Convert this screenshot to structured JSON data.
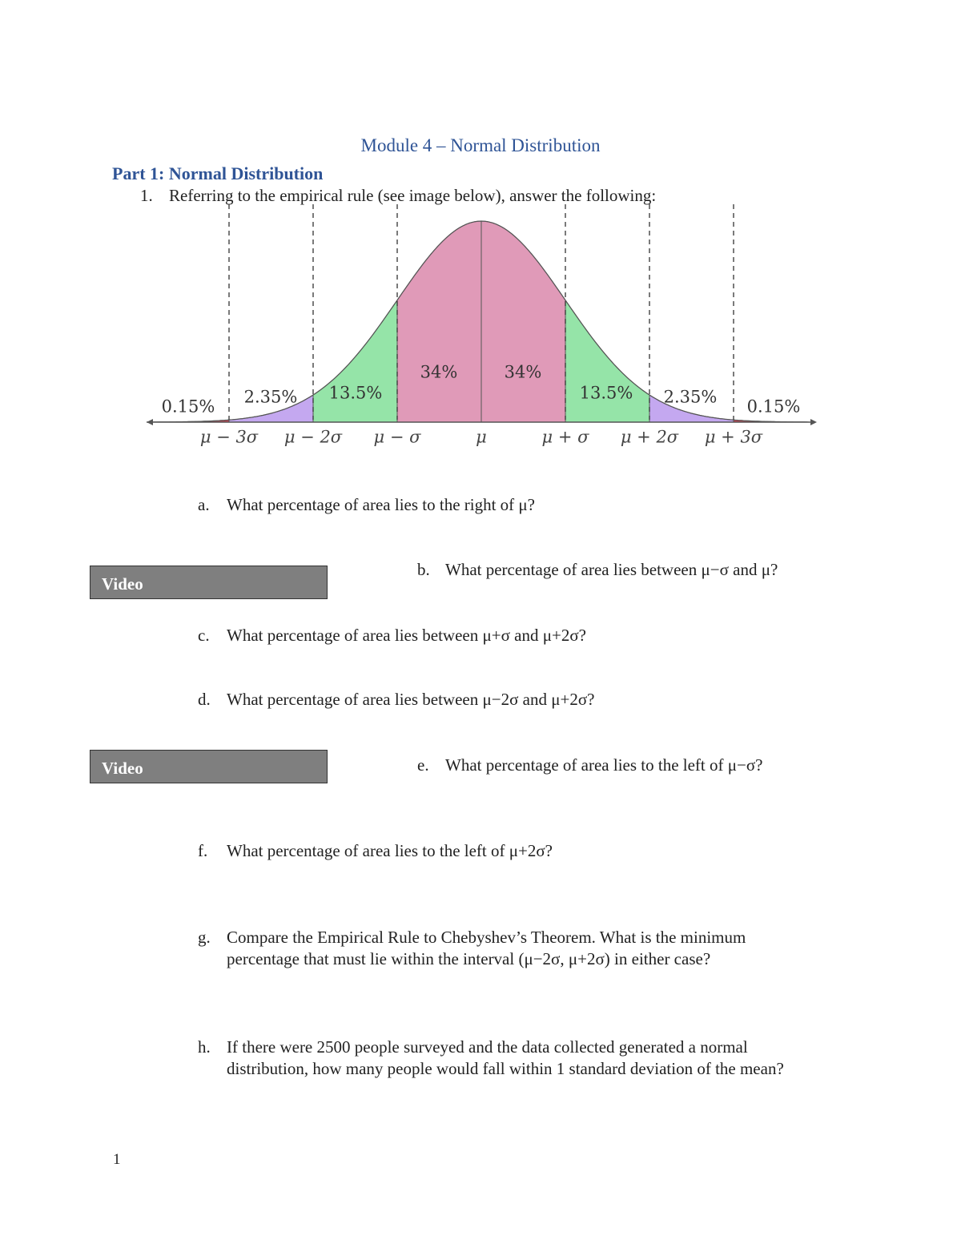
{
  "header": {
    "title": "Module 4 – Normal Distribution"
  },
  "section": {
    "title": "Part 1: Normal Distribution"
  },
  "question": {
    "number": "1.",
    "text": "Referring to the empirical rule (see image below), answer the following:"
  },
  "figure": {
    "region_labels": [
      "0.15%",
      "2.35%",
      "13.5%",
      "34%",
      "34%",
      "13.5%",
      "2.35%",
      "0.15%"
    ],
    "axis_labels": [
      "μ − 3σ",
      "μ − 2σ",
      "μ − σ",
      "μ",
      "μ + σ",
      "μ + 2σ",
      "μ + 3σ"
    ]
  },
  "subquestions": [
    {
      "letter": "a.",
      "text": "What percentage of area lies to the right of μ?"
    },
    {
      "letter": "b.",
      "text": "What percentage of area lies between μ−σ and μ?"
    },
    {
      "letter": "c.",
      "text": "What percentage of area lies between μ+σ and μ+2σ?"
    },
    {
      "letter": "d.",
      "text": "What percentage of area lies between μ−2σ and μ+2σ?"
    },
    {
      "letter": "e.",
      "text": "What percentage of area lies to the left of μ−σ?"
    },
    {
      "letter": "f.",
      "text": "What percentage of area lies to the left of μ+2σ?"
    },
    {
      "letter": "g.",
      "text": "Compare the Empirical Rule to Chebyshev’s Theorem.  What is the minimum percentage that must lie within the interval (μ−2σ, μ+2σ) in either case?"
    },
    {
      "letter": "h.",
      "text": "If there were 2500 people surveyed and the data collected generated a normal distribution, how many people would fall within 1 standard deviation of the mean?"
    }
  ],
  "buttons": [
    "Video",
    "Video"
  ],
  "footer": {
    "page_number": "1"
  }
}
